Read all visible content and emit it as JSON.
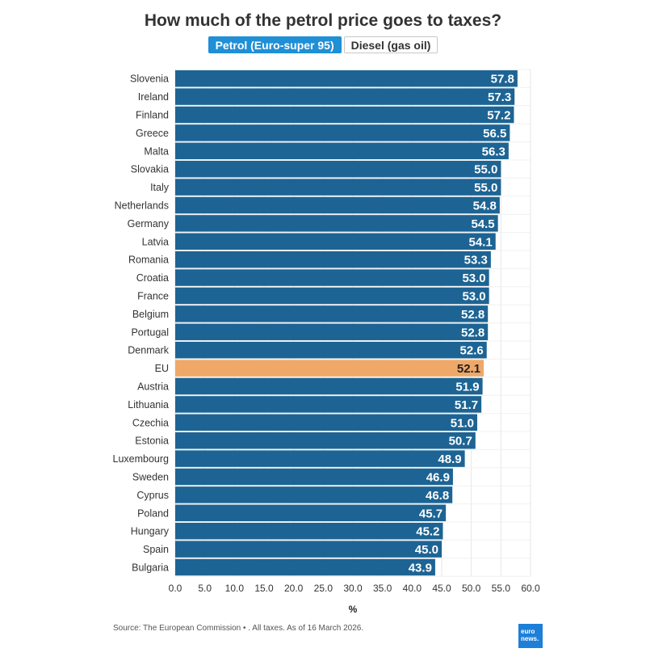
{
  "title": "How much of the petrol price goes to taxes?",
  "toggle": {
    "active_label": "Petrol (Euro-super 95)",
    "inactive_label": "Diesel (gas oil)"
  },
  "chart_data": {
    "type": "bar",
    "orientation": "horizontal",
    "title": "How much of the petrol price goes to taxes?",
    "xlabel": "%",
    "ylabel": "",
    "xlim": [
      0,
      60
    ],
    "xticks": [
      "0.0",
      "5.0",
      "10.0",
      "15.0",
      "20.0",
      "25.0",
      "30.0",
      "35.0",
      "40.0",
      "45.0",
      "50.0",
      "55.0",
      "60.0"
    ],
    "categories": [
      "Slovenia",
      "Ireland",
      "Finland",
      "Greece",
      "Malta",
      "Slovakia",
      "Italy",
      "Netherlands",
      "Germany",
      "Latvia",
      "Romania",
      "Croatia",
      "France",
      "Belgium",
      "Portugal",
      "Denmark",
      "EU",
      "Austria",
      "Lithuania",
      "Czechia",
      "Estonia",
      "Luxembourg",
      "Sweden",
      "Cyprus",
      "Poland",
      "Hungary",
      "Spain",
      "Bulgaria"
    ],
    "values": [
      57.8,
      57.3,
      57.2,
      56.5,
      56.3,
      55.0,
      55.0,
      54.8,
      54.5,
      54.1,
      53.3,
      53.0,
      53.0,
      52.8,
      52.8,
      52.6,
      52.1,
      51.9,
      51.7,
      51.0,
      50.7,
      48.9,
      46.9,
      46.8,
      45.7,
      45.2,
      45.0,
      43.9
    ],
    "value_labels": [
      "57.8",
      "57.3",
      "57.2",
      "56.5",
      "56.3",
      "55.0",
      "55.0",
      "54.8",
      "54.5",
      "54.1",
      "53.3",
      "53.0",
      "53.0",
      "52.8",
      "52.8",
      "52.6",
      "52.1",
      "51.9",
      "51.7",
      "51.0",
      "50.7",
      "48.9",
      "46.9",
      "46.8",
      "45.7",
      "45.2",
      "45.0",
      "43.9"
    ],
    "highlight_category": "EU",
    "colors": {
      "bar": "#1d6494",
      "highlight": "#f0a868",
      "grid": "#e6e6e6"
    },
    "grid": true
  },
  "source": "Source: The European Commission • . All taxes. As of 16 March 2026.",
  "logo": {
    "line1": "euro",
    "line2": "news."
  }
}
